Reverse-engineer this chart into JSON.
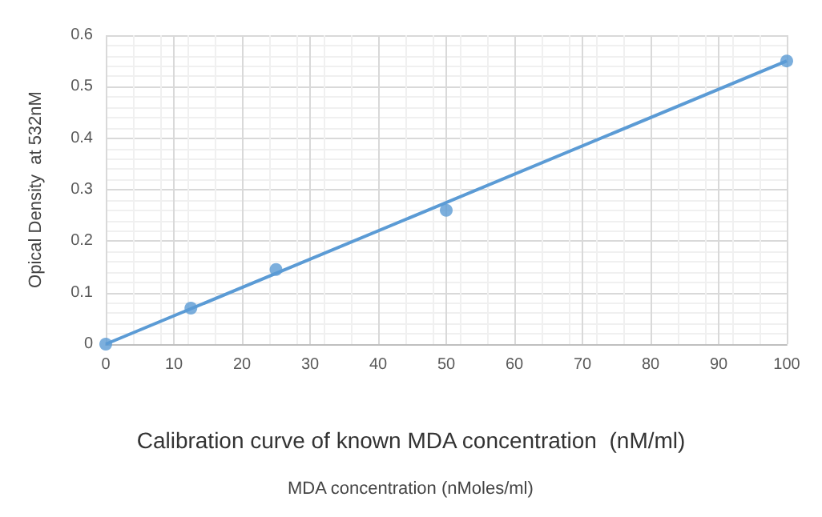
{
  "chart_data": {
    "type": "scatter",
    "title": "Calibration curve of known MDA concentration  (nM/ml)",
    "ylabel": "Opical Density  at 532nM",
    "annotations": [
      "MDA concentration (nMoles/ml)"
    ],
    "series": [
      {
        "color": "#5b9bd5",
        "x": [
          0,
          12.5,
          25,
          50,
          100
        ],
        "values": [
          0,
          0.07,
          0.145,
          0.26,
          0.55
        ],
        "marker": "circle"
      },
      {
        "type": "line",
        "color": "#5b9bd5",
        "x": [
          0,
          100
        ],
        "values": [
          0,
          0.55
        ],
        "marker": "none"
      }
    ],
    "xlim": [
      0,
      100
    ],
    "xticks": [
      0,
      10,
      20,
      30,
      40,
      50,
      60,
      70,
      80,
      90,
      100
    ],
    "ylim": [
      0,
      0.6
    ],
    "yticks": [
      0,
      0.1,
      0.2,
      0.3,
      0.4,
      0.5,
      0.6
    ],
    "grid": true
  }
}
